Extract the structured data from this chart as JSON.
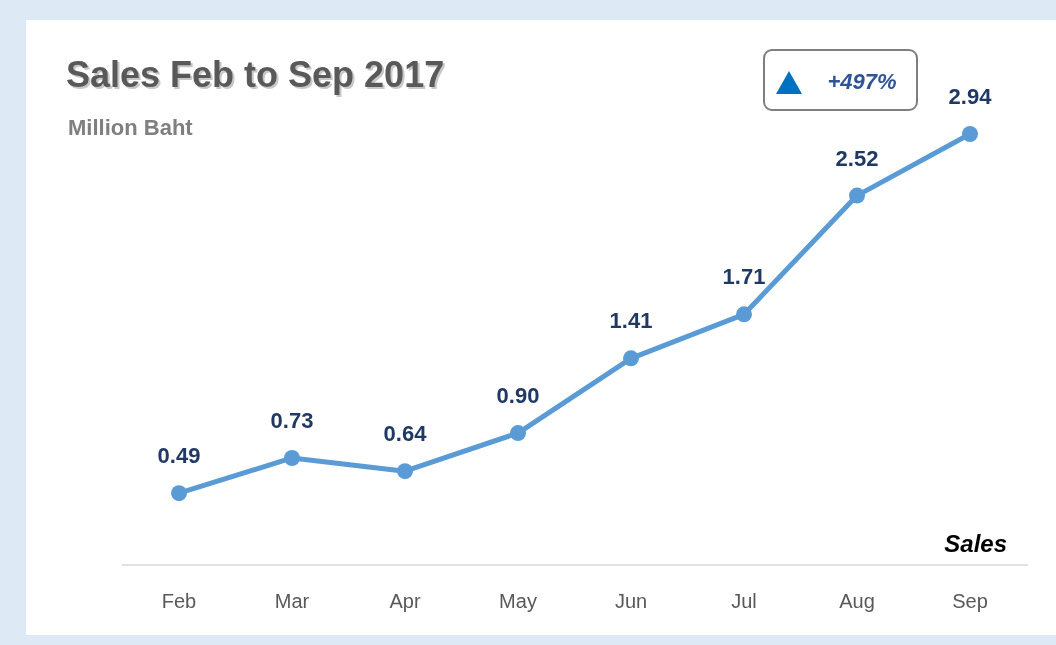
{
  "chart_data": {
    "type": "line",
    "title": "Sales Feb to Sep 2017",
    "subtitle": "Million Baht",
    "categories": [
      "Feb",
      "Mar",
      "Apr",
      "May",
      "Jun",
      "Jul",
      "Aug",
      "Sep"
    ],
    "series": [
      {
        "name": "Sales",
        "color": "#5b9bd5",
        "values": [
          0.49,
          0.73,
          0.64,
          0.9,
          1.41,
          1.71,
          2.52,
          2.94
        ],
        "value_labels": [
          "0.49",
          "0.73",
          "0.64",
          "0.90",
          "1.41",
          "1.71",
          "2.52",
          "2.94"
        ]
      }
    ],
    "annotations": [
      "+497%"
    ],
    "marker": "circle",
    "legend": "bottom right",
    "grid": false,
    "tick_labels": "x"
  }
}
